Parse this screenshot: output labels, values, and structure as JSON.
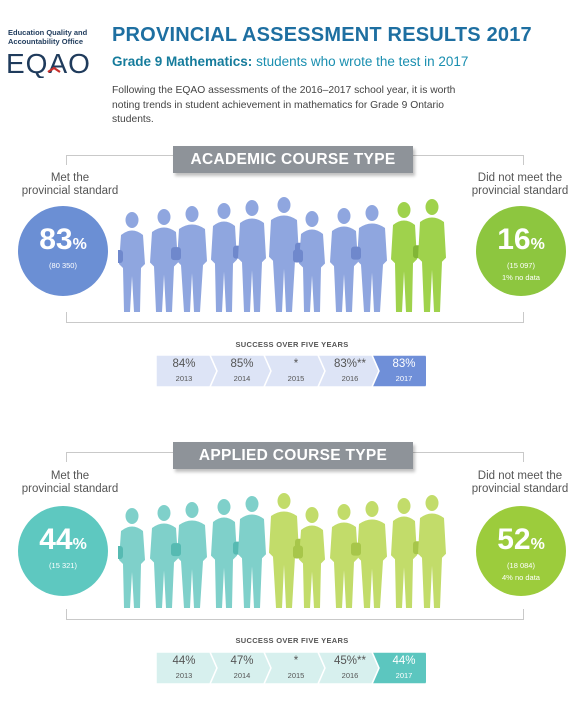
{
  "header": {
    "org_line1": "Education Quality and",
    "org_line2": "Accountability Office",
    "logo_text": "EQAO",
    "title": "PROVINCIAL ASSESSMENT RESULTS 2017",
    "subtitle_bold": "Grade 9 Mathematics:",
    "subtitle_rest": " students who wrote the test in 2017",
    "intro": "Following the EQAO assessments of the 2016–2017 school year, it is worth noting trends in student achievement in mathematics for Grade 9 Ontario students."
  },
  "academic": {
    "banner": "ACADEMIC COURSE TYPE",
    "met_label1": "Met the",
    "met_label2": "provincial standard",
    "met_pct": "83",
    "met_count": "(80 350)",
    "notmet_label1": "Did not meet the",
    "notmet_label2": "provincial standard",
    "notmet_pct": "16",
    "notmet_count": "(15 097)",
    "no_data": "1% no data",
    "trend_title": "SUCCESS OVER FIVE YEARS",
    "trend": [
      {
        "value": "84%",
        "year": "2013"
      },
      {
        "value": "85%",
        "year": "2014"
      },
      {
        "value": "*",
        "year": "2015"
      },
      {
        "value": "83%**",
        "year": "2016"
      },
      {
        "value": "83%",
        "year": "2017"
      }
    ],
    "colors": {
      "met": "#6b8fd4",
      "notmet": "#8dc63f",
      "trend_light": "#dde4f6",
      "trend_dark": "#6f8fd8"
    }
  },
  "applied": {
    "banner": "APPLIED COURSE TYPE",
    "met_label1": "Met the",
    "met_label2": "provincial standard",
    "met_pct": "44",
    "met_count": "(15 321)",
    "notmet_label1": "Did not meet the",
    "notmet_label2": "provincial standard",
    "notmet_pct": "52",
    "notmet_count": "(18 084)",
    "no_data": "4% no data",
    "trend_title": "SUCCESS OVER FIVE YEARS",
    "trend": [
      {
        "value": "44%",
        "year": "2013"
      },
      {
        "value": "47%",
        "year": "2014"
      },
      {
        "value": "*",
        "year": "2015"
      },
      {
        "value": "45%**",
        "year": "2016"
      },
      {
        "value": "44%",
        "year": "2017"
      }
    ],
    "colors": {
      "met": "#5ec8c0",
      "notmet": "#9ccc3c",
      "trend_light": "#d7f0ee",
      "trend_dark": "#5cc6bf"
    }
  }
}
